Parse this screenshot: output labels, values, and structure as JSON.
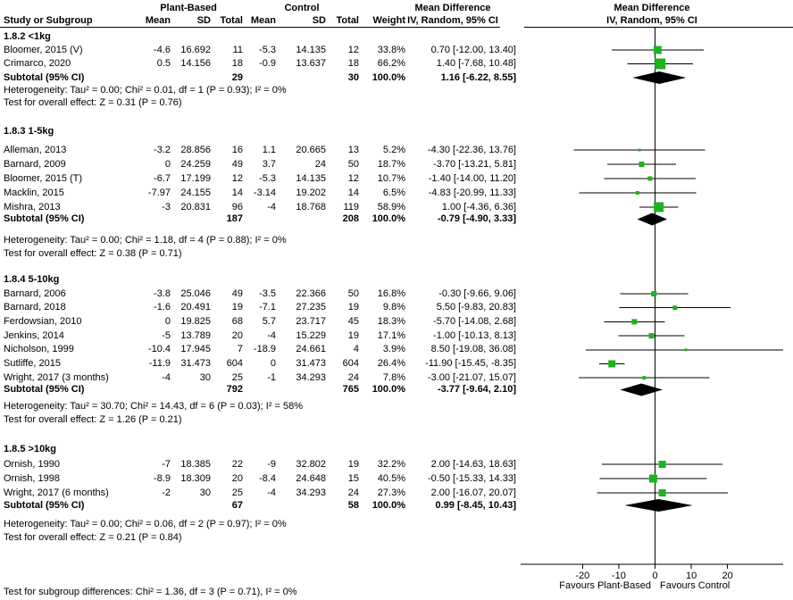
{
  "header": {
    "group_plant": "Plant-Based",
    "group_control": "Control",
    "col_study": "Study or Subgroup",
    "col_mean": "Mean",
    "col_sd": "SD",
    "col_total": "Total",
    "col_weight": "Weight",
    "md_title": "Mean Difference",
    "md_subtitle": "IV, Random, 95% CI"
  },
  "footer": {
    "subgroup_test": "Test for subgroup differences: Chi² = 1.36, df = 3 (P = 0.71), I² = 0%"
  },
  "colors": {
    "square": "#1CB41C",
    "diamond": "#000000",
    "line": "#000000",
    "text": "#000000"
  },
  "chart_data": {
    "type": "forest",
    "effect_label": "Mean Difference",
    "model": "IV, Random, 95% CI",
    "x_axis": {
      "ticks": [
        -20,
        -10,
        0,
        10,
        20
      ],
      "range_visible": [
        -37,
        35
      ],
      "favours_left": "Favours Plant-Based",
      "favours_right": "Favours Control"
    },
    "subgroups": [
      {
        "label": "1.8.2 <1kg",
        "studies": [
          {
            "name": "Bloomer, 2015 (V)",
            "pb_mean": -4.6,
            "pb_sd": 16.692,
            "pb_total": 11,
            "c_mean": -5.3,
            "c_sd": 14.135,
            "c_total": 12,
            "weight": 33.8,
            "md": 0.7,
            "lo": -12.0,
            "hi": 13.4
          },
          {
            "name": "Crimarco, 2020",
            "pb_mean": 0.5,
            "pb_sd": 14.156,
            "pb_total": 18,
            "c_mean": -0.9,
            "c_sd": 13.637,
            "c_total": 18,
            "weight": 66.2,
            "md": 1.4,
            "lo": -7.68,
            "hi": 10.48
          }
        ],
        "subtotal": {
          "label": "Subtotal (95% CI)",
          "pb_total": 29,
          "c_total": 30,
          "weight": 100.0,
          "md": 1.16,
          "lo": -6.22,
          "hi": 8.55
        },
        "heterogeneity": "Heterogeneity: Tau² = 0.00; Chi² = 0.01, df = 1 (P = 0.93); I² = 0%",
        "overall_test": "Test for overall effect: Z = 0.31 (P = 0.76)"
      },
      {
        "label": "1.8.3 1-5kg",
        "studies": [
          {
            "name": "Alleman, 2013",
            "pb_mean": -3.2,
            "pb_sd": 28.856,
            "pb_total": 16,
            "c_mean": 1.1,
            "c_sd": 20.665,
            "c_total": 13,
            "weight": 5.2,
            "md": -4.3,
            "lo": -22.36,
            "hi": 13.76
          },
          {
            "name": "Barnard, 2009",
            "pb_mean": 0,
            "pb_sd": 24.259,
            "pb_total": 49,
            "c_mean": 3.7,
            "c_sd": 24,
            "c_total": 50,
            "weight": 18.7,
            "md": -3.7,
            "lo": -13.21,
            "hi": 5.81
          },
          {
            "name": "Bloomer, 2015 (T)",
            "pb_mean": -6.7,
            "pb_sd": 17.199,
            "pb_total": 12,
            "c_mean": -5.3,
            "c_sd": 14.135,
            "c_total": 12,
            "weight": 10.7,
            "md": -1.4,
            "lo": -14.0,
            "hi": 11.2
          },
          {
            "name": "Macklin, 2015",
            "pb_mean": -7.97,
            "pb_sd": 24.155,
            "pb_total": 14,
            "c_mean": -3.14,
            "c_sd": 19.202,
            "c_total": 14,
            "weight": 6.5,
            "md": -4.83,
            "lo": -20.99,
            "hi": 11.33
          },
          {
            "name": "Mishra, 2013",
            "pb_mean": -3,
            "pb_sd": 20.831,
            "pb_total": 96,
            "c_mean": -4,
            "c_sd": 18.768,
            "c_total": 119,
            "weight": 58.9,
            "md": 1.0,
            "lo": -4.36,
            "hi": 6.36
          }
        ],
        "subtotal": {
          "label": "Subtotal (95% CI)",
          "pb_total": 187,
          "c_total": 208,
          "weight": 100.0,
          "md": -0.79,
          "lo": -4.9,
          "hi": 3.33
        },
        "heterogeneity": "Heterogeneity: Tau² = 0.00; Chi² = 1.18, df = 4 (P = 0.88); I² = 0%",
        "overall_test": "Test for overall effect: Z = 0.38 (P = 0.71)"
      },
      {
        "label": "1.8.4 5-10kg",
        "studies": [
          {
            "name": "Barnard, 2006",
            "pb_mean": -3.8,
            "pb_sd": 25.046,
            "pb_total": 49,
            "c_mean": -3.5,
            "c_sd": 22.366,
            "c_total": 50,
            "weight": 16.8,
            "md": -0.3,
            "lo": -9.66,
            "hi": 9.06
          },
          {
            "name": "Barnard, 2018",
            "pb_mean": -1.6,
            "pb_sd": 20.491,
            "pb_total": 19,
            "c_mean": -7.1,
            "c_sd": 27.235,
            "c_total": 19,
            "weight": 9.8,
            "md": 5.5,
            "lo": -9.83,
            "hi": 20.83
          },
          {
            "name": "Ferdowsian, 2010",
            "pb_mean": 0,
            "pb_sd": 19.825,
            "pb_total": 68,
            "c_mean": 5.7,
            "c_sd": 23.717,
            "c_total": 45,
            "weight": 18.3,
            "md": -5.7,
            "lo": -14.08,
            "hi": 2.68
          },
          {
            "name": "Jenkins, 2014",
            "pb_mean": -5,
            "pb_sd": 13.789,
            "pb_total": 20,
            "c_mean": -4,
            "c_sd": 15.229,
            "c_total": 19,
            "weight": 17.1,
            "md": -1.0,
            "lo": -10.13,
            "hi": 8.13
          },
          {
            "name": "Nicholson, 1999",
            "pb_mean": -10.4,
            "pb_sd": 17.945,
            "pb_total": 7,
            "c_mean": -18.9,
            "c_sd": 24.661,
            "c_total": 4,
            "weight": 3.9,
            "md": 8.5,
            "lo": -19.08,
            "hi": 36.08
          },
          {
            "name": "Sutliffe, 2015",
            "pb_mean": -11.9,
            "pb_sd": 31.473,
            "pb_total": 604,
            "c_mean": 0,
            "c_sd": 31.473,
            "c_total": 604,
            "weight": 26.4,
            "md": -11.9,
            "lo": -15.45,
            "hi": -8.35
          },
          {
            "name": "Wright, 2017 (3 months)",
            "pb_mean": -4,
            "pb_sd": 30,
            "pb_total": 25,
            "c_mean": -1,
            "c_sd": 34.293,
            "c_total": 24,
            "weight": 7.8,
            "md": -3.0,
            "lo": -21.07,
            "hi": 15.07
          }
        ],
        "subtotal": {
          "label": "Subtotal (95% CI)",
          "pb_total": 792,
          "c_total": 765,
          "weight": 100.0,
          "md": -3.77,
          "lo": -9.64,
          "hi": 2.1
        },
        "heterogeneity": "Heterogeneity: Tau² = 30.70; Chi² = 14.43, df = 6 (P = 0.03); I² = 58%",
        "overall_test": "Test for overall effect: Z = 1.26 (P = 0.21)"
      },
      {
        "label": "1.8.5 >10kg",
        "studies": [
          {
            "name": "Ornish, 1990",
            "pb_mean": -7,
            "pb_sd": 18.385,
            "pb_total": 22,
            "c_mean": -9,
            "c_sd": 32.802,
            "c_total": 19,
            "weight": 32.2,
            "md": 2.0,
            "lo": -14.63,
            "hi": 18.63
          },
          {
            "name": "Ornish, 1998",
            "pb_mean": -8.9,
            "pb_sd": 18.309,
            "pb_total": 20,
            "c_mean": -8.4,
            "c_sd": 24.648,
            "c_total": 15,
            "weight": 40.5,
            "md": -0.5,
            "lo": -15.33,
            "hi": 14.33
          },
          {
            "name": "Wright, 2017 (6 months)",
            "pb_mean": -2,
            "pb_sd": 30,
            "pb_total": 25,
            "c_mean": -4,
            "c_sd": 34.293,
            "c_total": 24,
            "weight": 27.3,
            "md": 2.0,
            "lo": -16.07,
            "hi": 20.07
          }
        ],
        "subtotal": {
          "label": "Subtotal (95% CI)",
          "pb_total": 67,
          "c_total": 58,
          "weight": 100.0,
          "md": 0.99,
          "lo": -8.45,
          "hi": 10.43
        },
        "heterogeneity": "Heterogeneity: Tau² = 0.00; Chi² = 0.06, df = 2 (P = 0.97); I² = 0%",
        "overall_test": "Test for overall effect: Z = 0.21 (P = 0.84)"
      }
    ]
  }
}
